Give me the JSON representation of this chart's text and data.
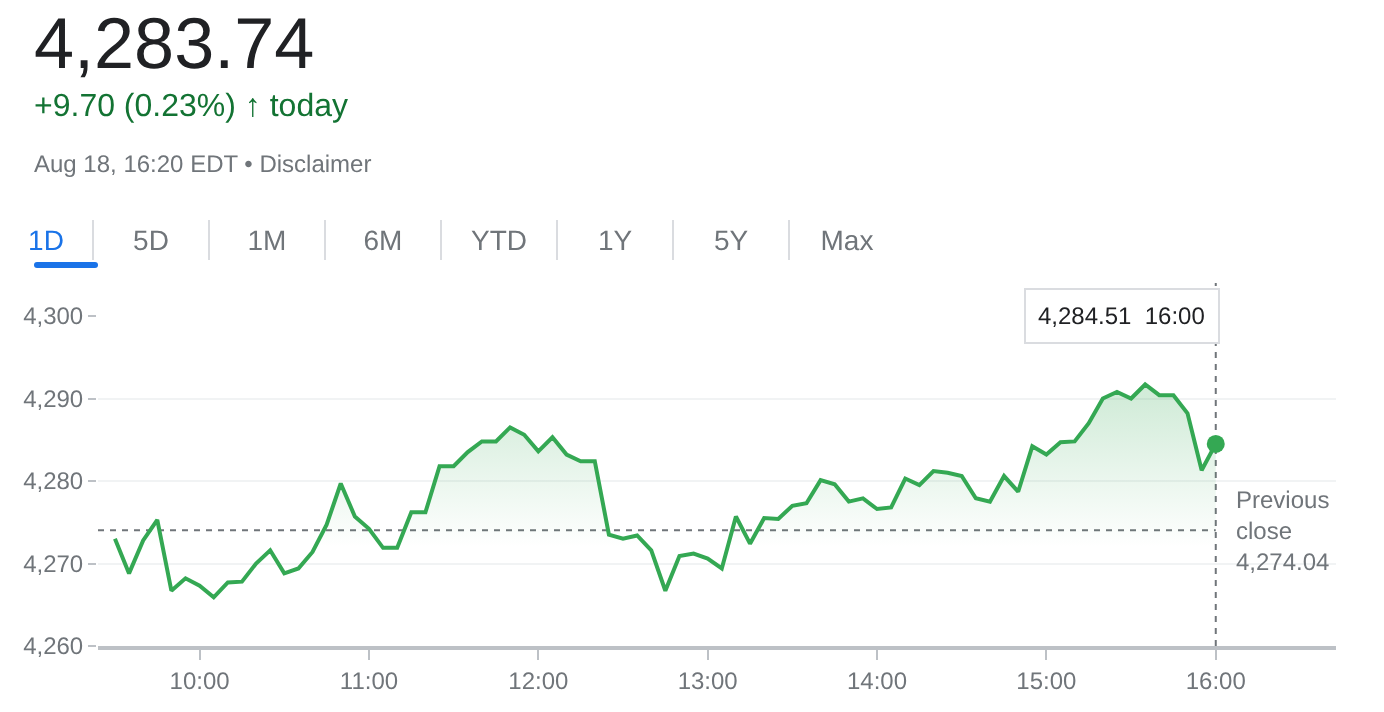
{
  "chart_data": {
    "type": "area",
    "title": "4,283.74",
    "subtitle": "+9.70 (0.23%) ↑ today",
    "annotations": [
      "Aug 18, 16:20 EDT • Disclaimer",
      "1D",
      "5D",
      "1M",
      "6M",
      "YTD",
      "1Y",
      "5Y",
      "Max",
      "4,284.51  16:00"
    ],
    "x": [
      9.5,
      9.5833,
      9.6667,
      9.75,
      9.8333,
      9.9167,
      10,
      10.0833,
      10.1667,
      10.25,
      10.3333,
      10.4167,
      10.5,
      10.5833,
      10.6667,
      10.75,
      10.8333,
      10.9167,
      11,
      11.0833,
      11.1667,
      11.25,
      11.3333,
      11.4167,
      11.5,
      11.5833,
      11.6667,
      11.75,
      11.8333,
      11.9167,
      12,
      12.0833,
      12.1667,
      12.25,
      12.3333,
      12.4167,
      12.5,
      12.5833,
      12.6667,
      12.75,
      12.8333,
      12.9167,
      13,
      13.0833,
      13.1667,
      13.25,
      13.3333,
      13.4167,
      13.5,
      13.5833,
      13.6667,
      13.75,
      13.8333,
      13.9167,
      14,
      14.0833,
      14.1667,
      14.25,
      14.3333,
      14.4167,
      14.5,
      14.5833,
      14.6667,
      14.75,
      14.8333,
      14.9167,
      15,
      15.0833,
      15.1667,
      15.25,
      15.3333,
      15.4167,
      15.5,
      15.5833,
      15.6667,
      15.75,
      15.8333,
      15.9167,
      16
    ],
    "series": [
      {
        "color": "#34a853",
        "values": [
          4273.0,
          4268.8,
          4272.8,
          4275.3,
          4266.7,
          4268.2,
          4267.3,
          4265.9,
          4267.7,
          4267.8,
          4270.0,
          4271.6,
          4268.8,
          4269.4,
          4271.4,
          4274.7,
          4279.7,
          4275.7,
          4274.2,
          4271.9,
          4271.9,
          4276.2,
          4276.2,
          4281.8,
          4281.8,
          4283.5,
          4284.8,
          4284.8,
          4286.5,
          4285.6,
          4283.6,
          4285.3,
          4283.2,
          4282.4,
          4282.4,
          4273.5,
          4273.0,
          4273.4,
          4271.6,
          4266.7,
          4270.9,
          4271.2,
          4270.6,
          4269.4,
          4275.7,
          4272.4,
          4275.5,
          4275.4,
          4277.0,
          4277.3,
          4280.1,
          4279.6,
          4277.5,
          4277.9,
          4276.6,
          4276.8,
          4280.3,
          4279.5,
          4281.2,
          4281.0,
          4280.6,
          4277.9,
          4277.5,
          4280.6,
          4278.7,
          4284.2,
          4283.2,
          4284.7,
          4284.8,
          4287.0,
          4290.0,
          4290.8,
          4290.0,
          4291.7,
          4290.4,
          4290.4,
          4288.2,
          4281.3,
          4284.5
        ]
      }
    ],
    "xlim": [
      9.4,
      16.71
    ],
    "xticks": [
      {
        "value": 10,
        "label": "10:00"
      },
      {
        "value": 11,
        "label": "11:00"
      },
      {
        "value": 12,
        "label": "12:00"
      },
      {
        "value": 13,
        "label": "13:00"
      },
      {
        "value": 14,
        "label": "14:00"
      },
      {
        "value": 15,
        "label": "15:00"
      },
      {
        "value": 16,
        "label": "16:00"
      }
    ],
    "ylim": [
      4260,
      4300
    ],
    "yticks": [
      {
        "value": 4260,
        "label": "4,260"
      },
      {
        "value": 4270,
        "label": "4,270"
      },
      {
        "value": 4280,
        "label": "4,280"
      },
      {
        "value": 4290,
        "label": "4,290"
      },
      {
        "value": 4300,
        "label": "4,300"
      }
    ],
    "ref_lines": [
      {
        "axis": "y",
        "value": 4274.04,
        "label": "Previous close 4,274.04",
        "line_style": "dotted",
        "color": "#70757a"
      },
      {
        "axis": "x",
        "value": 16,
        "line_style": "dotted",
        "color": "#70757a"
      }
    ],
    "grid": "y",
    "marker": "none",
    "line_style": "solid"
  }
}
